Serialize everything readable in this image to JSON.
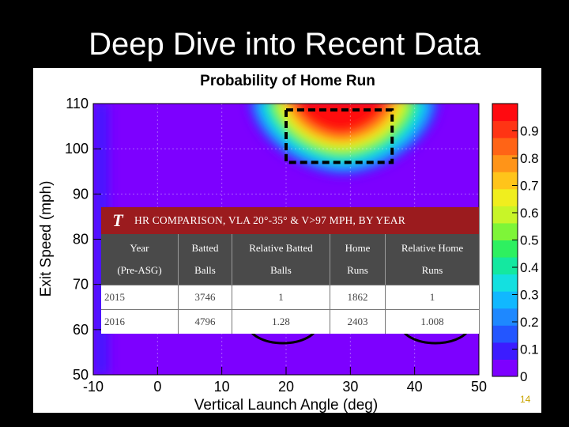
{
  "slide": {
    "title": "Deep Dive into Recent Data",
    "slide_number": "14"
  },
  "chart_data": {
    "type": "heatmap",
    "title": "Probability of Home Run",
    "xlabel": "Vertical Launch Angle (deg)",
    "ylabel": "Exit Speed (mph)",
    "xlim": [
      -10,
      50
    ],
    "ylim": [
      50,
      110
    ],
    "xticks": [
      "-10",
      "0",
      "10",
      "20",
      "30",
      "40",
      "50"
    ],
    "yticks": [
      "50",
      "60",
      "70",
      "80",
      "90",
      "100",
      "110"
    ],
    "colorbar": {
      "range": [
        0,
        1
      ],
      "ticks": [
        "0",
        "0.1",
        "0.2",
        "0.3",
        "0.4",
        "0.5",
        "0.6",
        "0.7",
        "0.8",
        "0.9"
      ],
      "colors": [
        "#7d00ff",
        "#3c1cff",
        "#2356ff",
        "#1e88ff",
        "#11b8ff",
        "#14e0e0",
        "#14e8a0",
        "#2ef060",
        "#7ef538",
        "#c8f528",
        "#f0ee1e",
        "#ffc41a",
        "#ff9418",
        "#ff6416",
        "#ff3414",
        "#ff0a10"
      ]
    },
    "highlight_box": {
      "x": [
        20,
        36.5
      ],
      "y": [
        97,
        110
      ]
    },
    "grid": true
  },
  "overlay_table": {
    "logo": "T",
    "title": "HR COMPARISON, VLA 20°-35° & V>97 MPH, BY YEAR",
    "columns": [
      [
        "Year",
        "(Pre-ASG)"
      ],
      [
        "Batted",
        "Balls"
      ],
      [
        "Relative Batted",
        "Balls"
      ],
      [
        "Home",
        "Runs"
      ],
      [
        "Relative Home",
        "Runs"
      ]
    ],
    "rows": [
      [
        "2015",
        "3746",
        "1",
        "1862",
        "1"
      ],
      [
        "2016",
        "4796",
        "1.28",
        "2403",
        "1.008"
      ]
    ],
    "circled": [
      "1.28",
      "1.008"
    ]
  }
}
